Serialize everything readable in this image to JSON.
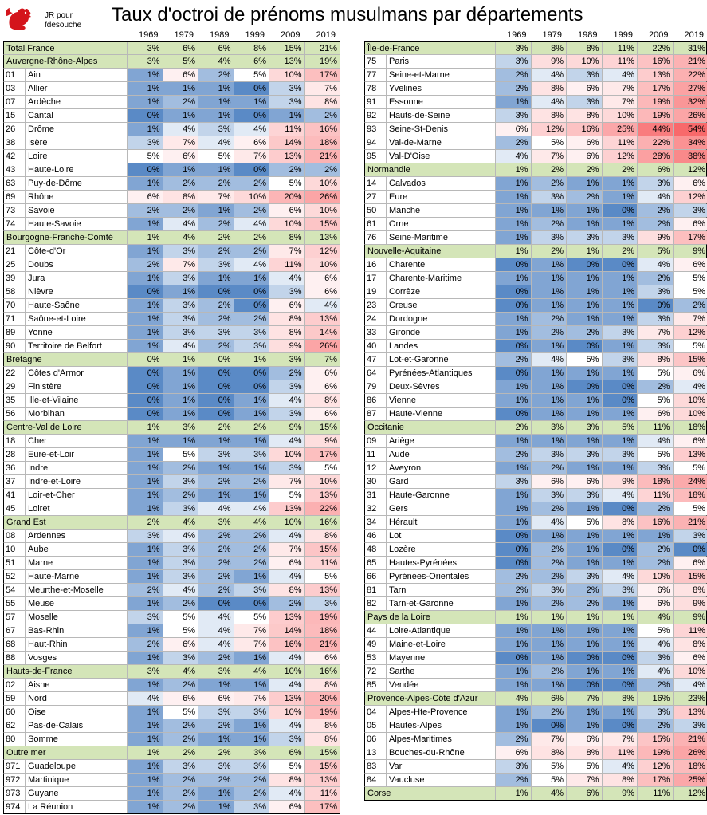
{
  "title": "Taux d'octroi de prénoms musulmans par départements",
  "credit": {
    "line1": "JR pour",
    "line2": "fdesouche"
  },
  "logo_icon": "rooster-icon",
  "colors": {
    "high": "#f8696b",
    "mid": "#ffffff",
    "low": "#5a8ac6",
    "region_bg": "#d4e5b8"
  },
  "years": [
    "1969",
    "1979",
    "1989",
    "1999",
    "2009",
    "2019"
  ],
  "left": [
    {
      "name": "Total France",
      "type": "region",
      "v": [
        "3%",
        "6%",
        "6%",
        "8%",
        "15%",
        "21%"
      ]
    },
    {
      "name": "Auvergne-Rhône-Alpes",
      "type": "region",
      "v": [
        "3%",
        "5%",
        "4%",
        "6%",
        "13%",
        "19%"
      ]
    },
    {
      "code": "01",
      "name": "Ain",
      "v": [
        "1%",
        "6%",
        "2%",
        "5%",
        "10%",
        "17%"
      ]
    },
    {
      "code": "03",
      "name": "Allier",
      "v": [
        "1%",
        "1%",
        "1%",
        "0%",
        "3%",
        "7%"
      ]
    },
    {
      "code": "07",
      "name": "Ardèche",
      "v": [
        "1%",
        "2%",
        "1%",
        "1%",
        "3%",
        "8%"
      ]
    },
    {
      "code": "15",
      "name": "Cantal",
      "v": [
        "0%",
        "1%",
        "1%",
        "0%",
        "1%",
        "2%"
      ]
    },
    {
      "code": "26",
      "name": "Drôme",
      "v": [
        "1%",
        "4%",
        "3%",
        "4%",
        "11%",
        "16%"
      ]
    },
    {
      "code": "38",
      "name": "Isère",
      "v": [
        "3%",
        "7%",
        "4%",
        "6%",
        "14%",
        "18%"
      ]
    },
    {
      "code": "42",
      "name": "Loire",
      "v": [
        "5%",
        "6%",
        "5%",
        "7%",
        "13%",
        "21%"
      ]
    },
    {
      "code": "43",
      "name": "Haute-Loire",
      "v": [
        "0%",
        "1%",
        "1%",
        "0%",
        "2%",
        "2%"
      ]
    },
    {
      "code": "63",
      "name": "Puy-de-Dôme",
      "v": [
        "1%",
        "2%",
        "2%",
        "2%",
        "5%",
        "10%"
      ]
    },
    {
      "code": "69",
      "name": "Rhône",
      "v": [
        "6%",
        "8%",
        "7%",
        "10%",
        "20%",
        "26%"
      ]
    },
    {
      "code": "73",
      "name": "Savoie",
      "v": [
        "2%",
        "2%",
        "1%",
        "2%",
        "6%",
        "10%"
      ]
    },
    {
      "code": "74",
      "name": "Haute-Savoie",
      "v": [
        "1%",
        "4%",
        "2%",
        "4%",
        "10%",
        "15%"
      ]
    },
    {
      "name": "Bourgogne-Franche-Comté",
      "type": "region",
      "v": [
        "1%",
        "4%",
        "2%",
        "2%",
        "8%",
        "13%"
      ]
    },
    {
      "code": "21",
      "name": "Côte-d'Or",
      "v": [
        "1%",
        "3%",
        "2%",
        "2%",
        "7%",
        "12%"
      ]
    },
    {
      "code": "25",
      "name": "Doubs",
      "v": [
        "2%",
        "7%",
        "3%",
        "4%",
        "11%",
        "10%"
      ]
    },
    {
      "code": "39",
      "name": "Jura",
      "v": [
        "1%",
        "3%",
        "1%",
        "1%",
        "4%",
        "6%"
      ]
    },
    {
      "code": "58",
      "name": "Nièvre",
      "v": [
        "0%",
        "1%",
        "0%",
        "0%",
        "3%",
        "6%"
      ]
    },
    {
      "code": "70",
      "name": "Haute-Saône",
      "v": [
        "1%",
        "3%",
        "2%",
        "0%",
        "6%",
        "4%"
      ]
    },
    {
      "code": "71",
      "name": "Saône-et-Loire",
      "v": [
        "1%",
        "3%",
        "2%",
        "2%",
        "8%",
        "13%"
      ]
    },
    {
      "code": "89",
      "name": "Yonne",
      "v": [
        "1%",
        "3%",
        "3%",
        "3%",
        "8%",
        "14%"
      ]
    },
    {
      "code": "90",
      "name": "Territoire de Belfort",
      "v": [
        "1%",
        "4%",
        "2%",
        "3%",
        "9%",
        "26%"
      ]
    },
    {
      "name": "Bretagne",
      "type": "region",
      "v": [
        "0%",
        "1%",
        "0%",
        "1%",
        "3%",
        "7%"
      ]
    },
    {
      "code": "22",
      "name": "Côtes d'Armor",
      "v": [
        "0%",
        "1%",
        "0%",
        "0%",
        "2%",
        "6%"
      ]
    },
    {
      "code": "29",
      "name": "Finistère",
      "v": [
        "0%",
        "1%",
        "0%",
        "0%",
        "3%",
        "6%"
      ]
    },
    {
      "code": "35",
      "name": "Ille-et-Vilaine",
      "v": [
        "0%",
        "1%",
        "0%",
        "1%",
        "4%",
        "8%"
      ]
    },
    {
      "code": "56",
      "name": "Morbihan",
      "v": [
        "0%",
        "1%",
        "0%",
        "1%",
        "3%",
        "6%"
      ]
    },
    {
      "name": "Centre-Val de Loire",
      "type": "region",
      "v": [
        "1%",
        "3%",
        "2%",
        "2%",
        "9%",
        "15%"
      ]
    },
    {
      "code": "18",
      "name": "Cher",
      "v": [
        "1%",
        "1%",
        "1%",
        "1%",
        "4%",
        "9%"
      ]
    },
    {
      "code": "28",
      "name": "Eure-et-Loir",
      "v": [
        "1%",
        "5%",
        "3%",
        "3%",
        "10%",
        "17%"
      ]
    },
    {
      "code": "36",
      "name": "Indre",
      "v": [
        "1%",
        "2%",
        "1%",
        "1%",
        "3%",
        "5%"
      ]
    },
    {
      "code": "37",
      "name": "Indre-et-Loire",
      "v": [
        "1%",
        "3%",
        "2%",
        "2%",
        "7%",
        "10%"
      ]
    },
    {
      "code": "41",
      "name": "Loir-et-Cher",
      "v": [
        "1%",
        "2%",
        "1%",
        "1%",
        "5%",
        "13%"
      ]
    },
    {
      "code": "45",
      "name": "Loiret",
      "v": [
        "1%",
        "3%",
        "4%",
        "4%",
        "13%",
        "22%"
      ]
    },
    {
      "name": "Grand Est",
      "type": "region",
      "v": [
        "2%",
        "4%",
        "3%",
        "4%",
        "10%",
        "16%"
      ]
    },
    {
      "code": "08",
      "name": "Ardennes",
      "v": [
        "3%",
        "4%",
        "2%",
        "2%",
        "4%",
        "8%"
      ]
    },
    {
      "code": "10",
      "name": "Aube",
      "v": [
        "1%",
        "3%",
        "2%",
        "2%",
        "7%",
        "15%"
      ]
    },
    {
      "code": "51",
      "name": "Marne",
      "v": [
        "1%",
        "3%",
        "2%",
        "2%",
        "6%",
        "11%"
      ]
    },
    {
      "code": "52",
      "name": "Haute-Marne",
      "v": [
        "1%",
        "3%",
        "2%",
        "1%",
        "4%",
        "5%"
      ]
    },
    {
      "code": "54",
      "name": "Meurthe-et-Moselle",
      "v": [
        "2%",
        "4%",
        "2%",
        "3%",
        "8%",
        "13%"
      ]
    },
    {
      "code": "55",
      "name": "Meuse",
      "v": [
        "1%",
        "2%",
        "0%",
        "0%",
        "2%",
        "3%"
      ]
    },
    {
      "code": "57",
      "name": "Moselle",
      "v": [
        "3%",
        "5%",
        "4%",
        "5%",
        "13%",
        "19%"
      ]
    },
    {
      "code": "67",
      "name": "Bas-Rhin",
      "v": [
        "1%",
        "5%",
        "4%",
        "7%",
        "14%",
        "18%"
      ]
    },
    {
      "code": "68",
      "name": "Haut-Rhin",
      "v": [
        "2%",
        "6%",
        "4%",
        "7%",
        "16%",
        "21%"
      ]
    },
    {
      "code": "88",
      "name": "Vosges",
      "v": [
        "1%",
        "3%",
        "2%",
        "1%",
        "4%",
        "6%"
      ]
    },
    {
      "name": "Hauts-de-France",
      "type": "region",
      "v": [
        "3%",
        "4%",
        "3%",
        "4%",
        "10%",
        "16%"
      ]
    },
    {
      "code": "02",
      "name": "Aisne",
      "v": [
        "1%",
        "2%",
        "1%",
        "1%",
        "4%",
        "8%"
      ]
    },
    {
      "code": "59",
      "name": "Nord",
      "v": [
        "4%",
        "6%",
        "6%",
        "7%",
        "13%",
        "20%"
      ]
    },
    {
      "code": "60",
      "name": "Oise",
      "v": [
        "1%",
        "5%",
        "3%",
        "3%",
        "10%",
        "19%"
      ]
    },
    {
      "code": "62",
      "name": "Pas-de-Calais",
      "v": [
        "1%",
        "2%",
        "2%",
        "1%",
        "4%",
        "8%"
      ]
    },
    {
      "code": "80",
      "name": "Somme",
      "v": [
        "1%",
        "2%",
        "1%",
        "1%",
        "3%",
        "8%"
      ]
    },
    {
      "name": "Outre mer",
      "type": "region",
      "v": [
        "1%",
        "2%",
        "2%",
        "3%",
        "6%",
        "15%"
      ]
    },
    {
      "code": "971",
      "name": "Guadeloupe",
      "v": [
        "1%",
        "3%",
        "3%",
        "3%",
        "5%",
        "15%"
      ]
    },
    {
      "code": "972",
      "name": "Martinique",
      "v": [
        "1%",
        "2%",
        "2%",
        "2%",
        "8%",
        "13%"
      ]
    },
    {
      "code": "973",
      "name": "Guyane",
      "v": [
        "1%",
        "2%",
        "1%",
        "2%",
        "4%",
        "11%"
      ]
    },
    {
      "code": "974",
      "name": "La Réunion",
      "v": [
        "1%",
        "2%",
        "1%",
        "3%",
        "6%",
        "17%"
      ]
    }
  ],
  "right": [
    {
      "name": "Île-de-France",
      "type": "region",
      "v": [
        "3%",
        "8%",
        "8%",
        "11%",
        "22%",
        "31%"
      ]
    },
    {
      "code": "75",
      "name": "Paris",
      "v": [
        "3%",
        "9%",
        "10%",
        "11%",
        "16%",
        "21%"
      ]
    },
    {
      "code": "77",
      "name": "Seine-et-Marne",
      "v": [
        "2%",
        "4%",
        "3%",
        "4%",
        "13%",
        "22%"
      ]
    },
    {
      "code": "78",
      "name": "Yvelines",
      "v": [
        "2%",
        "8%",
        "6%",
        "7%",
        "17%",
        "27%"
      ]
    },
    {
      "code": "91",
      "name": "Essonne",
      "v": [
        "1%",
        "4%",
        "3%",
        "7%",
        "19%",
        "32%"
      ]
    },
    {
      "code": "92",
      "name": "Hauts-de-Seine",
      "v": [
        "3%",
        "8%",
        "8%",
        "10%",
        "19%",
        "26%"
      ]
    },
    {
      "code": "93",
      "name": "Seine-St-Denis",
      "v": [
        "6%",
        "12%",
        "16%",
        "25%",
        "44%",
        "54%"
      ]
    },
    {
      "code": "94",
      "name": "Val-de-Marne",
      "v": [
        "2%",
        "5%",
        "6%",
        "11%",
        "22%",
        "34%"
      ]
    },
    {
      "code": "95",
      "name": "Val-D'Oise",
      "v": [
        "4%",
        "7%",
        "6%",
        "12%",
        "28%",
        "38%"
      ]
    },
    {
      "name": "Normandie",
      "type": "region",
      "v": [
        "1%",
        "2%",
        "2%",
        "2%",
        "6%",
        "12%"
      ]
    },
    {
      "code": "14",
      "name": "Calvados",
      "v": [
        "1%",
        "2%",
        "1%",
        "1%",
        "3%",
        "6%"
      ]
    },
    {
      "code": "27",
      "name": "Eure",
      "v": [
        "1%",
        "3%",
        "2%",
        "1%",
        "4%",
        "12%"
      ]
    },
    {
      "code": "50",
      "name": "Manche",
      "v": [
        "1%",
        "1%",
        "1%",
        "0%",
        "2%",
        "3%"
      ]
    },
    {
      "code": "61",
      "name": "Orne",
      "v": [
        "1%",
        "2%",
        "1%",
        "1%",
        "2%",
        "6%"
      ]
    },
    {
      "code": "76",
      "name": "Seine-Maritime",
      "v": [
        "1%",
        "3%",
        "3%",
        "3%",
        "9%",
        "17%"
      ]
    },
    {
      "name": "Nouvelle-Aquitaine",
      "type": "region",
      "v": [
        "1%",
        "2%",
        "1%",
        "2%",
        "5%",
        "9%"
      ]
    },
    {
      "code": "16",
      "name": "Charente",
      "v": [
        "0%",
        "1%",
        "0%",
        "0%",
        "4%",
        "6%"
      ]
    },
    {
      "code": "17",
      "name": "Charente-Maritime",
      "v": [
        "1%",
        "1%",
        "1%",
        "1%",
        "2%",
        "5%"
      ]
    },
    {
      "code": "19",
      "name": "Corrèze",
      "v": [
        "0%",
        "1%",
        "1%",
        "1%",
        "3%",
        "5%"
      ]
    },
    {
      "code": "23",
      "name": "Creuse",
      "v": [
        "0%",
        "1%",
        "1%",
        "1%",
        "0%",
        "2%"
      ]
    },
    {
      "code": "24",
      "name": "Dordogne",
      "v": [
        "1%",
        "2%",
        "1%",
        "1%",
        "3%",
        "7%"
      ]
    },
    {
      "code": "33",
      "name": "Gironde",
      "v": [
        "1%",
        "2%",
        "2%",
        "3%",
        "7%",
        "12%"
      ]
    },
    {
      "code": "40",
      "name": "Landes",
      "v": [
        "0%",
        "1%",
        "0%",
        "1%",
        "3%",
        "5%"
      ]
    },
    {
      "code": "47",
      "name": "Lot-et-Garonne",
      "v": [
        "2%",
        "4%",
        "5%",
        "3%",
        "8%",
        "15%"
      ]
    },
    {
      "code": "64",
      "name": "Pyrénées-Atlantiques",
      "v": [
        "0%",
        "1%",
        "1%",
        "1%",
        "5%",
        "6%"
      ]
    },
    {
      "code": "79",
      "name": "Deux-Sèvres",
      "v": [
        "1%",
        "1%",
        "0%",
        "0%",
        "2%",
        "4%"
      ]
    },
    {
      "code": "86",
      "name": "Vienne",
      "v": [
        "1%",
        "1%",
        "1%",
        "0%",
        "5%",
        "10%"
      ]
    },
    {
      "code": "87",
      "name": "Haute-Vienne",
      "v": [
        "0%",
        "1%",
        "1%",
        "1%",
        "6%",
        "10%"
      ]
    },
    {
      "name": "Occitanie",
      "type": "region",
      "v": [
        "2%",
        "3%",
        "3%",
        "5%",
        "11%",
        "18%"
      ]
    },
    {
      "code": "09",
      "name": "Ariège",
      "v": [
        "1%",
        "1%",
        "1%",
        "1%",
        "4%",
        "6%"
      ]
    },
    {
      "code": "11",
      "name": "Aude",
      "v": [
        "2%",
        "3%",
        "3%",
        "3%",
        "5%",
        "13%"
      ]
    },
    {
      "code": "12",
      "name": "Aveyron",
      "v": [
        "1%",
        "2%",
        "1%",
        "1%",
        "3%",
        "5%"
      ]
    },
    {
      "code": "30",
      "name": "Gard",
      "v": [
        "3%",
        "6%",
        "6%",
        "9%",
        "18%",
        "24%"
      ]
    },
    {
      "code": "31",
      "name": "Haute-Garonne",
      "v": [
        "1%",
        "3%",
        "3%",
        "4%",
        "11%",
        "18%"
      ]
    },
    {
      "code": "32",
      "name": "Gers",
      "v": [
        "1%",
        "2%",
        "1%",
        "0%",
        "2%",
        "5%"
      ]
    },
    {
      "code": "34",
      "name": "Hérault",
      "v": [
        "1%",
        "4%",
        "5%",
        "8%",
        "16%",
        "21%"
      ]
    },
    {
      "code": "46",
      "name": "Lot",
      "v": [
        "0%",
        "1%",
        "1%",
        "1%",
        "1%",
        "3%"
      ]
    },
    {
      "code": "48",
      "name": "Lozère",
      "v": [
        "0%",
        "2%",
        "1%",
        "0%",
        "2%",
        "0%"
      ]
    },
    {
      "code": "65",
      "name": "Hautes-Pyrénées",
      "v": [
        "0%",
        "2%",
        "1%",
        "1%",
        "2%",
        "6%"
      ]
    },
    {
      "code": "66",
      "name": "Pyrénées-Orientales",
      "v": [
        "2%",
        "2%",
        "3%",
        "4%",
        "10%",
        "15%"
      ]
    },
    {
      "code": "81",
      "name": "Tarn",
      "v": [
        "2%",
        "3%",
        "2%",
        "3%",
        "6%",
        "8%"
      ]
    },
    {
      "code": "82",
      "name": "Tarn-et-Garonne",
      "v": [
        "1%",
        "2%",
        "2%",
        "1%",
        "6%",
        "9%"
      ]
    },
    {
      "name": "Pays de la Loire",
      "type": "region",
      "v": [
        "1%",
        "1%",
        "1%",
        "1%",
        "4%",
        "9%"
      ]
    },
    {
      "code": "44",
      "name": "Loire-Atlantique",
      "v": [
        "1%",
        "1%",
        "1%",
        "1%",
        "5%",
        "11%"
      ]
    },
    {
      "code": "49",
      "name": "Maine-et-Loire",
      "v": [
        "1%",
        "1%",
        "1%",
        "1%",
        "4%",
        "8%"
      ]
    },
    {
      "code": "53",
      "name": "Mayenne",
      "v": [
        "0%",
        "1%",
        "0%",
        "0%",
        "3%",
        "6%"
      ]
    },
    {
      "code": "72",
      "name": "Sarthe",
      "v": [
        "1%",
        "2%",
        "1%",
        "1%",
        "4%",
        "10%"
      ]
    },
    {
      "code": "85",
      "name": "Vendée",
      "v": [
        "1%",
        "1%",
        "0%",
        "0%",
        "2%",
        "4%"
      ]
    },
    {
      "name": "Provence-Alpes-Côte d'Azur",
      "type": "region",
      "v": [
        "4%",
        "6%",
        "7%",
        "8%",
        "16%",
        "23%"
      ]
    },
    {
      "code": "04",
      "name": "Alpes-Hte-Provence",
      "v": [
        "1%",
        "2%",
        "1%",
        "1%",
        "3%",
        "13%"
      ]
    },
    {
      "code": "05",
      "name": "Hautes-Alpes",
      "v": [
        "1%",
        "0%",
        "1%",
        "0%",
        "2%",
        "3%"
      ]
    },
    {
      "code": "06",
      "name": "Alpes-Maritimes",
      "v": [
        "2%",
        "7%",
        "6%",
        "7%",
        "15%",
        "21%"
      ]
    },
    {
      "code": "13",
      "name": "Bouches-du-Rhône",
      "v": [
        "6%",
        "8%",
        "8%",
        "11%",
        "19%",
        "26%"
      ]
    },
    {
      "code": "83",
      "name": "Var",
      "v": [
        "3%",
        "5%",
        "5%",
        "4%",
        "12%",
        "18%"
      ]
    },
    {
      "code": "84",
      "name": "Vaucluse",
      "v": [
        "2%",
        "5%",
        "7%",
        "8%",
        "17%",
        "25%"
      ]
    },
    {
      "name": "Corse",
      "type": "region",
      "v": [
        "1%",
        "4%",
        "6%",
        "9%",
        "11%",
        "12%"
      ]
    }
  ]
}
